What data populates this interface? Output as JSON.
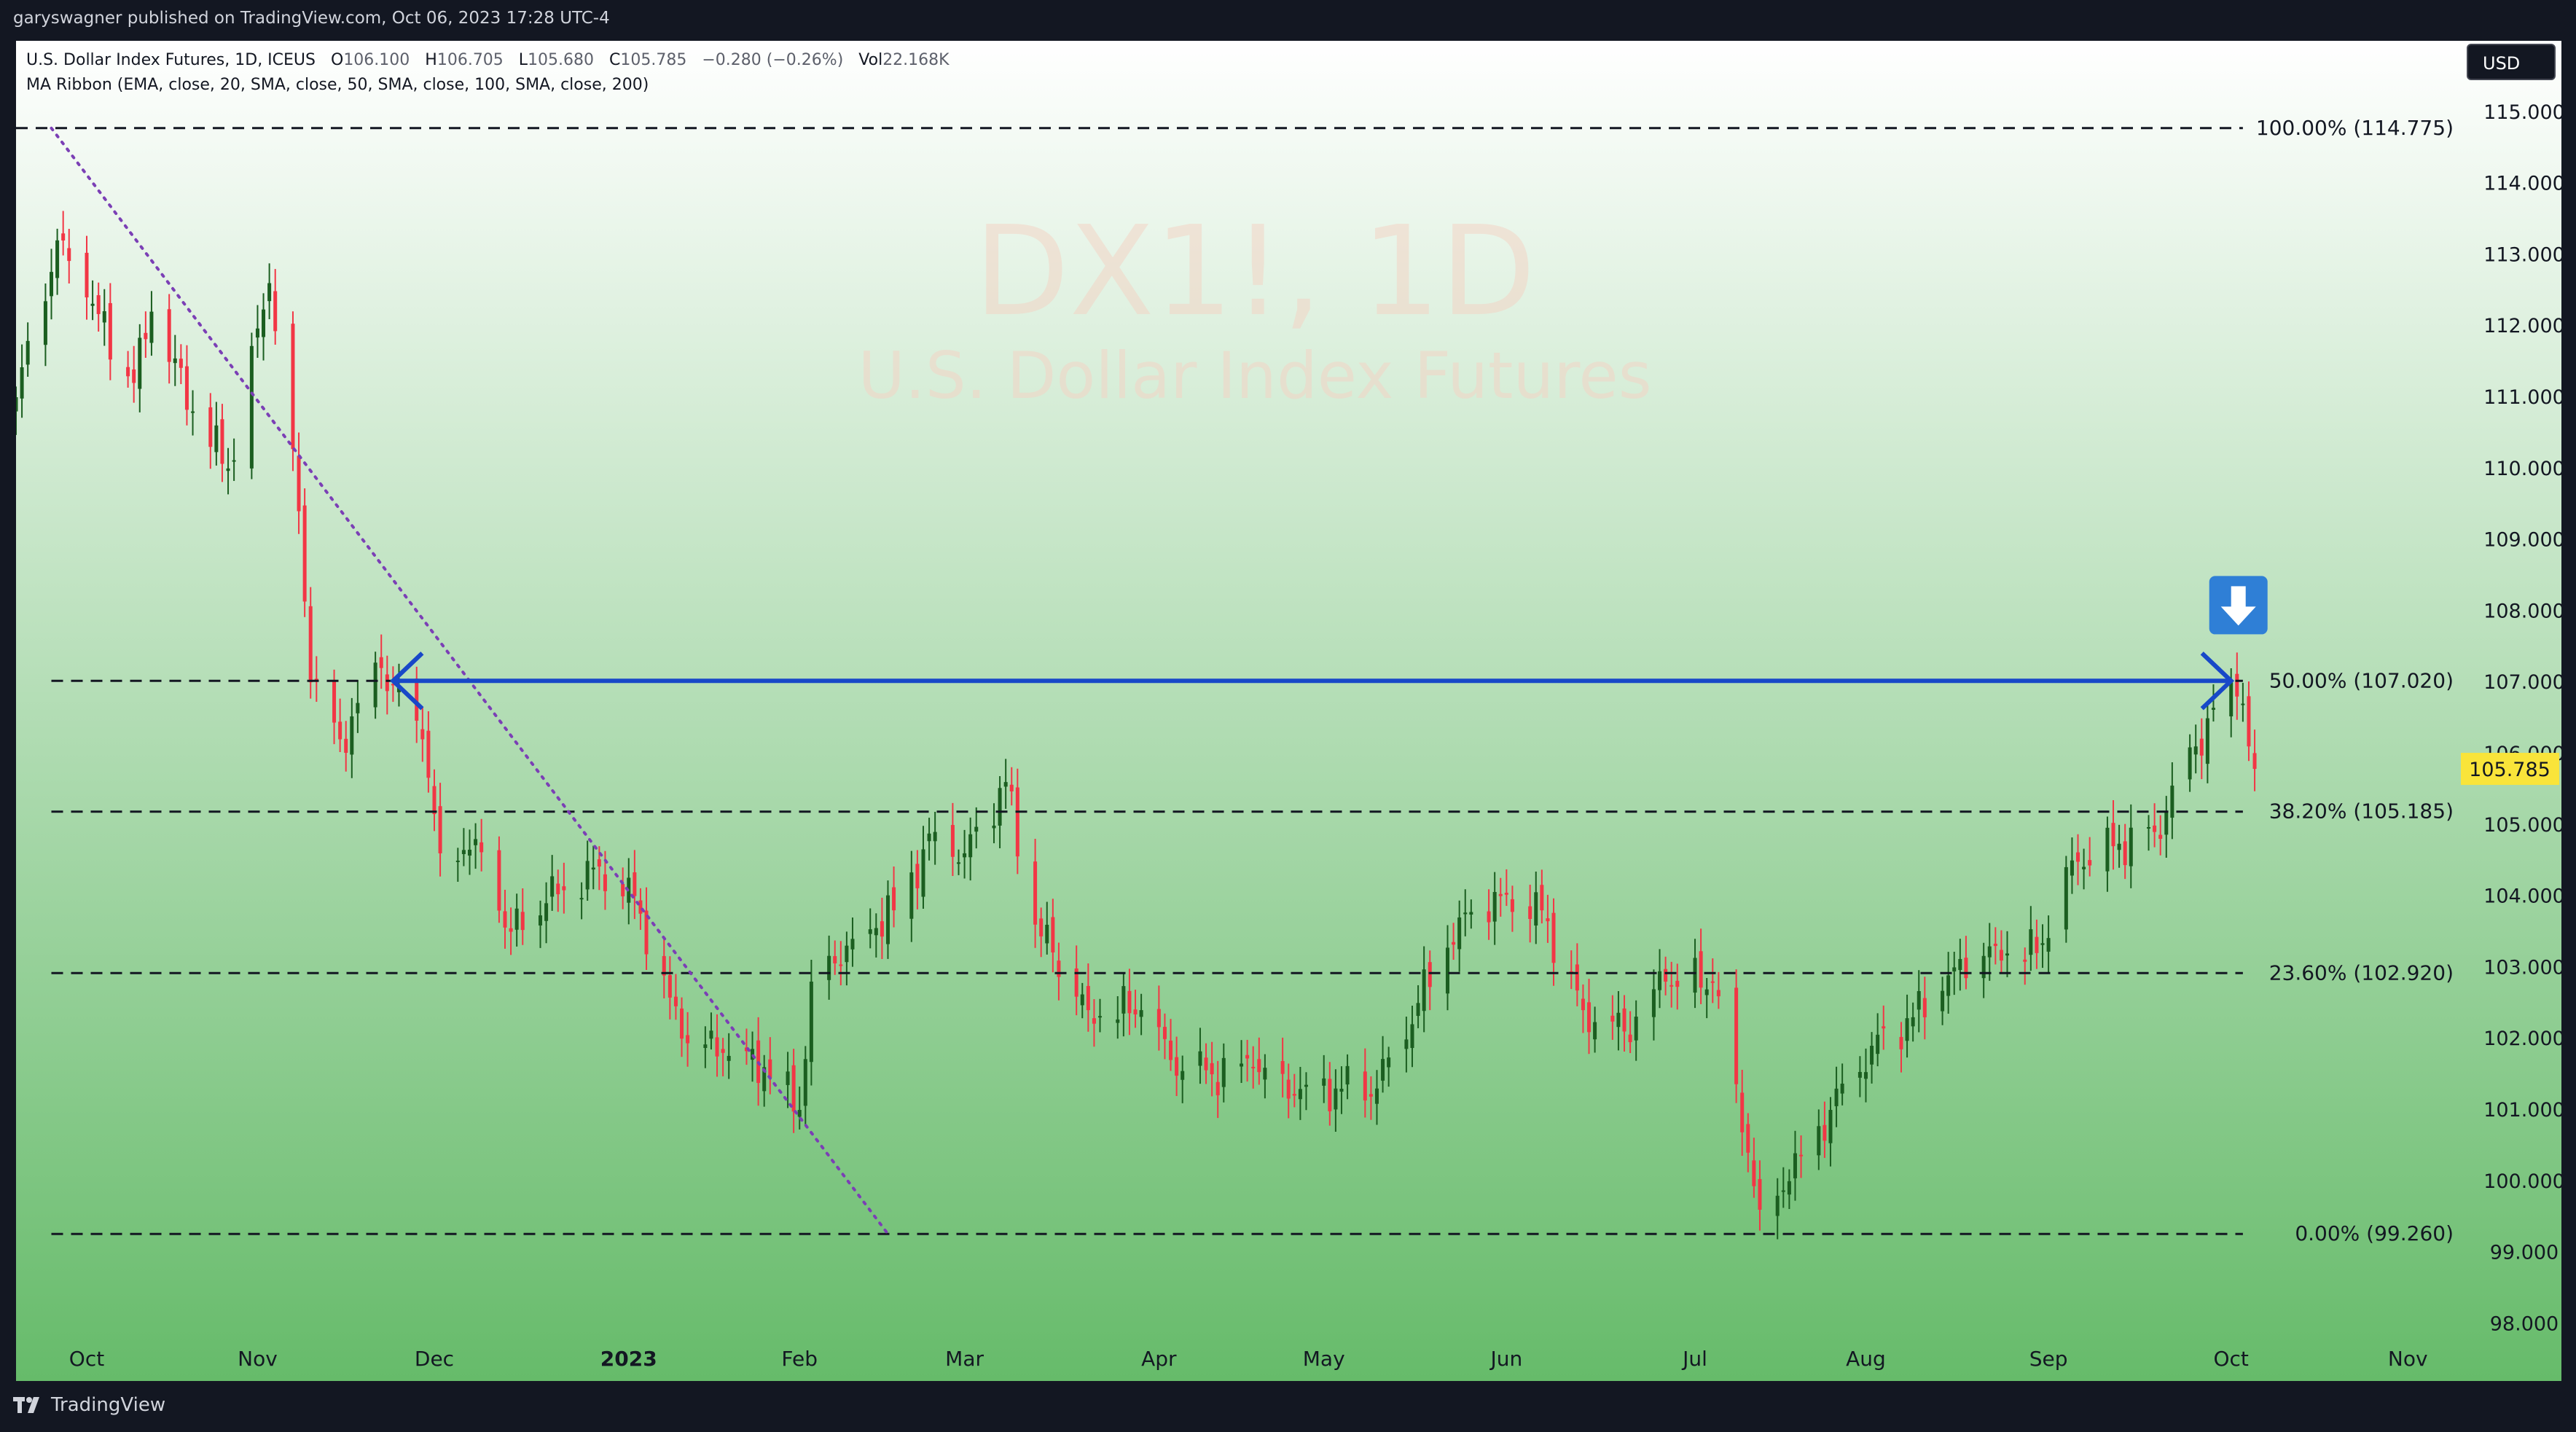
{
  "publisher_line": "garyswagner published on TradingView.com, Oct 06, 2023 17:28 UTC-4",
  "brand": "TradingView",
  "currency_button": "USD",
  "legend": {
    "symbol": "U.S. Dollar Index Futures, 1D, ICEUS",
    "o_label": "O",
    "o_value": "106.100",
    "h_label": "H",
    "h_value": "106.705",
    "l_label": "L",
    "l_value": "105.680",
    "c_label": "C",
    "c_value": "105.785",
    "change": "−0.280 (−0.26%)",
    "vol_label": "Vol",
    "vol_value": "22.168K",
    "indicator": "MA Ribbon (EMA, close, 20, SMA, close, 50, SMA, close, 100, SMA, close, 200)"
  },
  "watermark": {
    "symbol": "DX1!, 1D",
    "name": "U.S. Dollar Index Futures"
  },
  "colors": {
    "up": "#1b5e20",
    "down": "#f23645",
    "fib_line": "#131722",
    "arrow": "#1848c8",
    "trendline": "#7b3fb5",
    "price_label_bg": "#f9e43a",
    "background_top": "#ffffff",
    "background_bottom": "#66bb6a"
  },
  "chart_data": {
    "type": "candlestick",
    "ylim": [
      97.8,
      116.0
    ],
    "y_ticks": [
      "98.000",
      "99.000",
      "100.000",
      "101.000",
      "102.000",
      "103.000",
      "104.000",
      "105.000",
      "106.000",
      "107.000",
      "108.000",
      "109.000",
      "110.000",
      "111.000",
      "112.000",
      "113.000",
      "114.000",
      "115.000"
    ],
    "x_ticks": [
      {
        "label": "Oct",
        "date": "2022-10-03"
      },
      {
        "label": "Nov",
        "date": "2022-11-01"
      },
      {
        "label": "Dec",
        "date": "2022-12-01"
      },
      {
        "label": "2023",
        "date": "2023-01-03"
      },
      {
        "label": "Feb",
        "date": "2023-02-01"
      },
      {
        "label": "Mar",
        "date": "2023-03-01"
      },
      {
        "label": "Apr",
        "date": "2023-04-03"
      },
      {
        "label": "May",
        "date": "2023-05-01"
      },
      {
        "label": "Jun",
        "date": "2023-06-01"
      },
      {
        "label": "Jul",
        "date": "2023-07-03"
      },
      {
        "label": "Aug",
        "date": "2023-08-01"
      },
      {
        "label": "Sep",
        "date": "2023-09-01"
      },
      {
        "label": "Oct",
        "date": "2023-10-02"
      },
      {
        "label": "Nov",
        "date": "2023-11-01"
      }
    ],
    "x_range": [
      "2022-09-21",
      "2023-11-10"
    ],
    "close_anchors": [
      {
        "date": "2022-09-21",
        "close": 111.0
      },
      {
        "date": "2022-09-28",
        "close": 113.2
      },
      {
        "date": "2022-10-03",
        "close": 112.4
      },
      {
        "date": "2022-10-11",
        "close": 111.2
      },
      {
        "date": "2022-10-14",
        "close": 112.2
      },
      {
        "date": "2022-10-21",
        "close": 110.8
      },
      {
        "date": "2022-10-27",
        "close": 110.0
      },
      {
        "date": "2022-11-03",
        "close": 112.6
      },
      {
        "date": "2022-11-08",
        "close": 109.4
      },
      {
        "date": "2022-11-10",
        "close": 107.0
      },
      {
        "date": "2022-11-15",
        "close": 106.2
      },
      {
        "date": "2022-11-22",
        "close": 107.2
      },
      {
        "date": "2022-11-29",
        "close": 106.2
      },
      {
        "date": "2022-12-02",
        "close": 104.6
      },
      {
        "date": "2022-12-08",
        "close": 104.8
      },
      {
        "date": "2022-12-14",
        "close": 103.5
      },
      {
        "date": "2022-12-20",
        "close": 103.9
      },
      {
        "date": "2022-12-28",
        "close": 104.4
      },
      {
        "date": "2023-01-04",
        "close": 104.0
      },
      {
        "date": "2023-01-12",
        "close": 102.0
      },
      {
        "date": "2023-01-19",
        "close": 101.8
      },
      {
        "date": "2023-01-26",
        "close": 101.6
      },
      {
        "date": "2023-02-01",
        "close": 101.0
      },
      {
        "date": "2023-02-03",
        "close": 102.8
      },
      {
        "date": "2023-02-10",
        "close": 103.4
      },
      {
        "date": "2023-02-17",
        "close": 103.8
      },
      {
        "date": "2023-02-24",
        "close": 104.9
      },
      {
        "date": "2023-03-01",
        "close": 104.6
      },
      {
        "date": "2023-03-08",
        "close": 105.6
      },
      {
        "date": "2023-03-13",
        "close": 103.6
      },
      {
        "date": "2023-03-22",
        "close": 102.4
      },
      {
        "date": "2023-03-31",
        "close": 102.4
      },
      {
        "date": "2023-04-05",
        "close": 101.7
      },
      {
        "date": "2023-04-12",
        "close": 101.5
      },
      {
        "date": "2023-04-19",
        "close": 101.6
      },
      {
        "date": "2023-04-26",
        "close": 101.2
      },
      {
        "date": "2023-05-03",
        "close": 101.3
      },
      {
        "date": "2023-05-10",
        "close": 101.3
      },
      {
        "date": "2023-05-17",
        "close": 102.5
      },
      {
        "date": "2023-05-24",
        "close": 103.7
      },
      {
        "date": "2023-05-31",
        "close": 104.0
      },
      {
        "date": "2023-06-07",
        "close": 103.8
      },
      {
        "date": "2023-06-14",
        "close": 102.4
      },
      {
        "date": "2023-06-21",
        "close": 102.1
      },
      {
        "date": "2023-06-28",
        "close": 102.8
      },
      {
        "date": "2023-07-06",
        "close": 102.8
      },
      {
        "date": "2023-07-12",
        "close": 100.4
      },
      {
        "date": "2023-07-14",
        "close": 99.6
      },
      {
        "date": "2023-07-19",
        "close": 100.0
      },
      {
        "date": "2023-07-26",
        "close": 101.0
      },
      {
        "date": "2023-08-02",
        "close": 101.9
      },
      {
        "date": "2023-08-09",
        "close": 102.3
      },
      {
        "date": "2023-08-16",
        "close": 103.0
      },
      {
        "date": "2023-08-23",
        "close": 103.3
      },
      {
        "date": "2023-08-30",
        "close": 103.2
      },
      {
        "date": "2023-09-05",
        "close": 104.5
      },
      {
        "date": "2023-09-12",
        "close": 104.7
      },
      {
        "date": "2023-09-19",
        "close": 104.9
      },
      {
        "date": "2023-09-26",
        "close": 106.1
      },
      {
        "date": "2023-10-02",
        "close": 107.0
      },
      {
        "date": "2023-10-03",
        "close": 106.8
      },
      {
        "date": "2023-10-04",
        "close": 106.7
      },
      {
        "date": "2023-10-05",
        "close": 106.1
      },
      {
        "date": "2023-10-06",
        "close": 105.785
      }
    ],
    "current_price": {
      "value": 105.785,
      "label": "105.785"
    },
    "fib_levels": [
      {
        "ratio": "100.00%",
        "price": 114.775,
        "label": "100.00% (114.775)"
      },
      {
        "ratio": "50.00%",
        "price": 107.02,
        "label": "50.00% (107.020)"
      },
      {
        "ratio": "38.20%",
        "price": 105.185,
        "label": "38.20% (105.185)"
      },
      {
        "ratio": "23.60%",
        "price": 102.92,
        "label": "23.60% (102.920)"
      },
      {
        "ratio": "0.00%",
        "price": 99.26,
        "label": "0.00% (99.260)"
      }
    ],
    "fib_span": {
      "start": "2022-09-27",
      "end": "2023-10-04"
    },
    "trendline": {
      "from": {
        "date": "2022-09-27",
        "price": 114.775
      },
      "to": {
        "date": "2023-02-16",
        "price": 99.26
      },
      "style": "dotted"
    },
    "horizontal_arrow": {
      "from": "2022-11-24",
      "to": "2023-10-02",
      "price": 107.02
    },
    "down_marker": {
      "date": "2023-10-02",
      "price": 107.55
    }
  }
}
